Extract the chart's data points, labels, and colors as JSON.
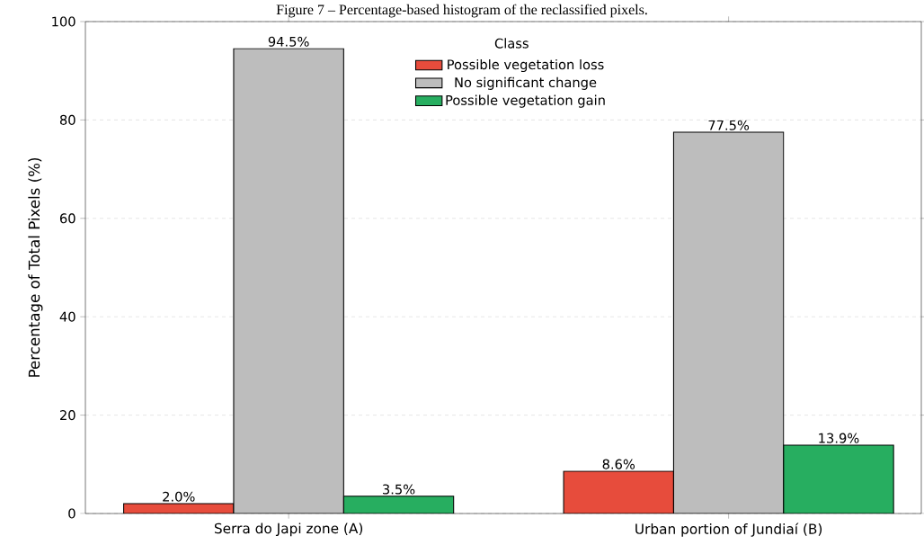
{
  "chart_data": {
    "type": "bar",
    "title": "Figure 7 – Percentage-based histogram of the reclassified pixels.",
    "ylabel": "Percentage of Total Pixels (%)",
    "legend_title": "Class",
    "categories": [
      "Serra do Japi zone (A)",
      "Urban portion of Jundiaí (B)"
    ],
    "series": [
      {
        "name": "Possible vegetation loss",
        "color": "#e74c3c",
        "values": [
          2.0,
          8.6
        ],
        "value_labels": [
          "2.0%",
          "8.6%"
        ]
      },
      {
        "name": "No significant change",
        "color": "#bdbdbd",
        "values": [
          94.5,
          77.5
        ],
        "value_labels": [
          "94.5%",
          "77.5%"
        ]
      },
      {
        "name": "Possible vegetation gain",
        "color": "#27ae60",
        "values": [
          3.5,
          13.9
        ],
        "value_labels": [
          "3.5%",
          "13.9%"
        ]
      }
    ],
    "ylim": [
      0,
      100
    ],
    "yticks": [
      0,
      20,
      40,
      60,
      80,
      100
    ],
    "grid": "y",
    "legend": "top"
  }
}
